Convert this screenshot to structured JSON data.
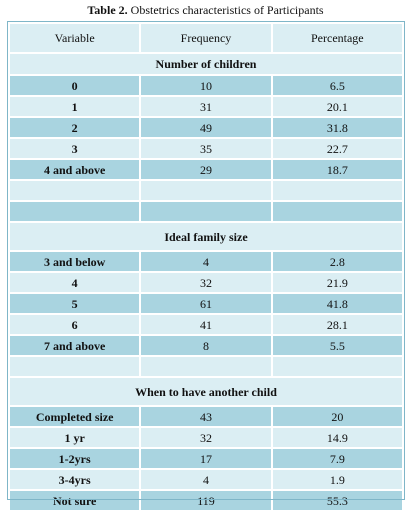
{
  "caption": {
    "label": "Table 2.",
    "text": " Obstetrics characteristics of Participants"
  },
  "table": {
    "headers": [
      "Variable",
      "Frequency",
      "Percentage"
    ],
    "sections": [
      {
        "title": "Number of children",
        "rows": [
          [
            "0",
            "10",
            "6.5"
          ],
          [
            "1",
            "31",
            "20.1"
          ],
          [
            "2",
            "49",
            "31.8"
          ],
          [
            "3",
            "35",
            "22.7"
          ],
          [
            "4 and above",
            "29",
            "18.7"
          ]
        ]
      },
      {
        "title": "Ideal family size",
        "rows": [
          [
            "3 and below",
            "4",
            "2.8"
          ],
          [
            "4",
            "32",
            "21.9"
          ],
          [
            "5",
            "61",
            "41.8"
          ],
          [
            "6",
            "41",
            "28.1"
          ],
          [
            "7 and above",
            "8",
            "5.5"
          ]
        ]
      },
      {
        "title": "When to have another child",
        "rows": [
          [
            "Completed size",
            "43",
            "20"
          ],
          [
            "1 yr",
            "32",
            "14.9"
          ],
          [
            "1-2yrs",
            "17",
            "7.9"
          ],
          [
            "3-4yrs",
            "4",
            "1.9"
          ],
          [
            "Not sure",
            "119",
            "55.3"
          ]
        ]
      }
    ]
  },
  "colors": {
    "light_row": "#dbeef3",
    "dark_row": "#a9d4e0",
    "border": "#7fb6c8"
  }
}
